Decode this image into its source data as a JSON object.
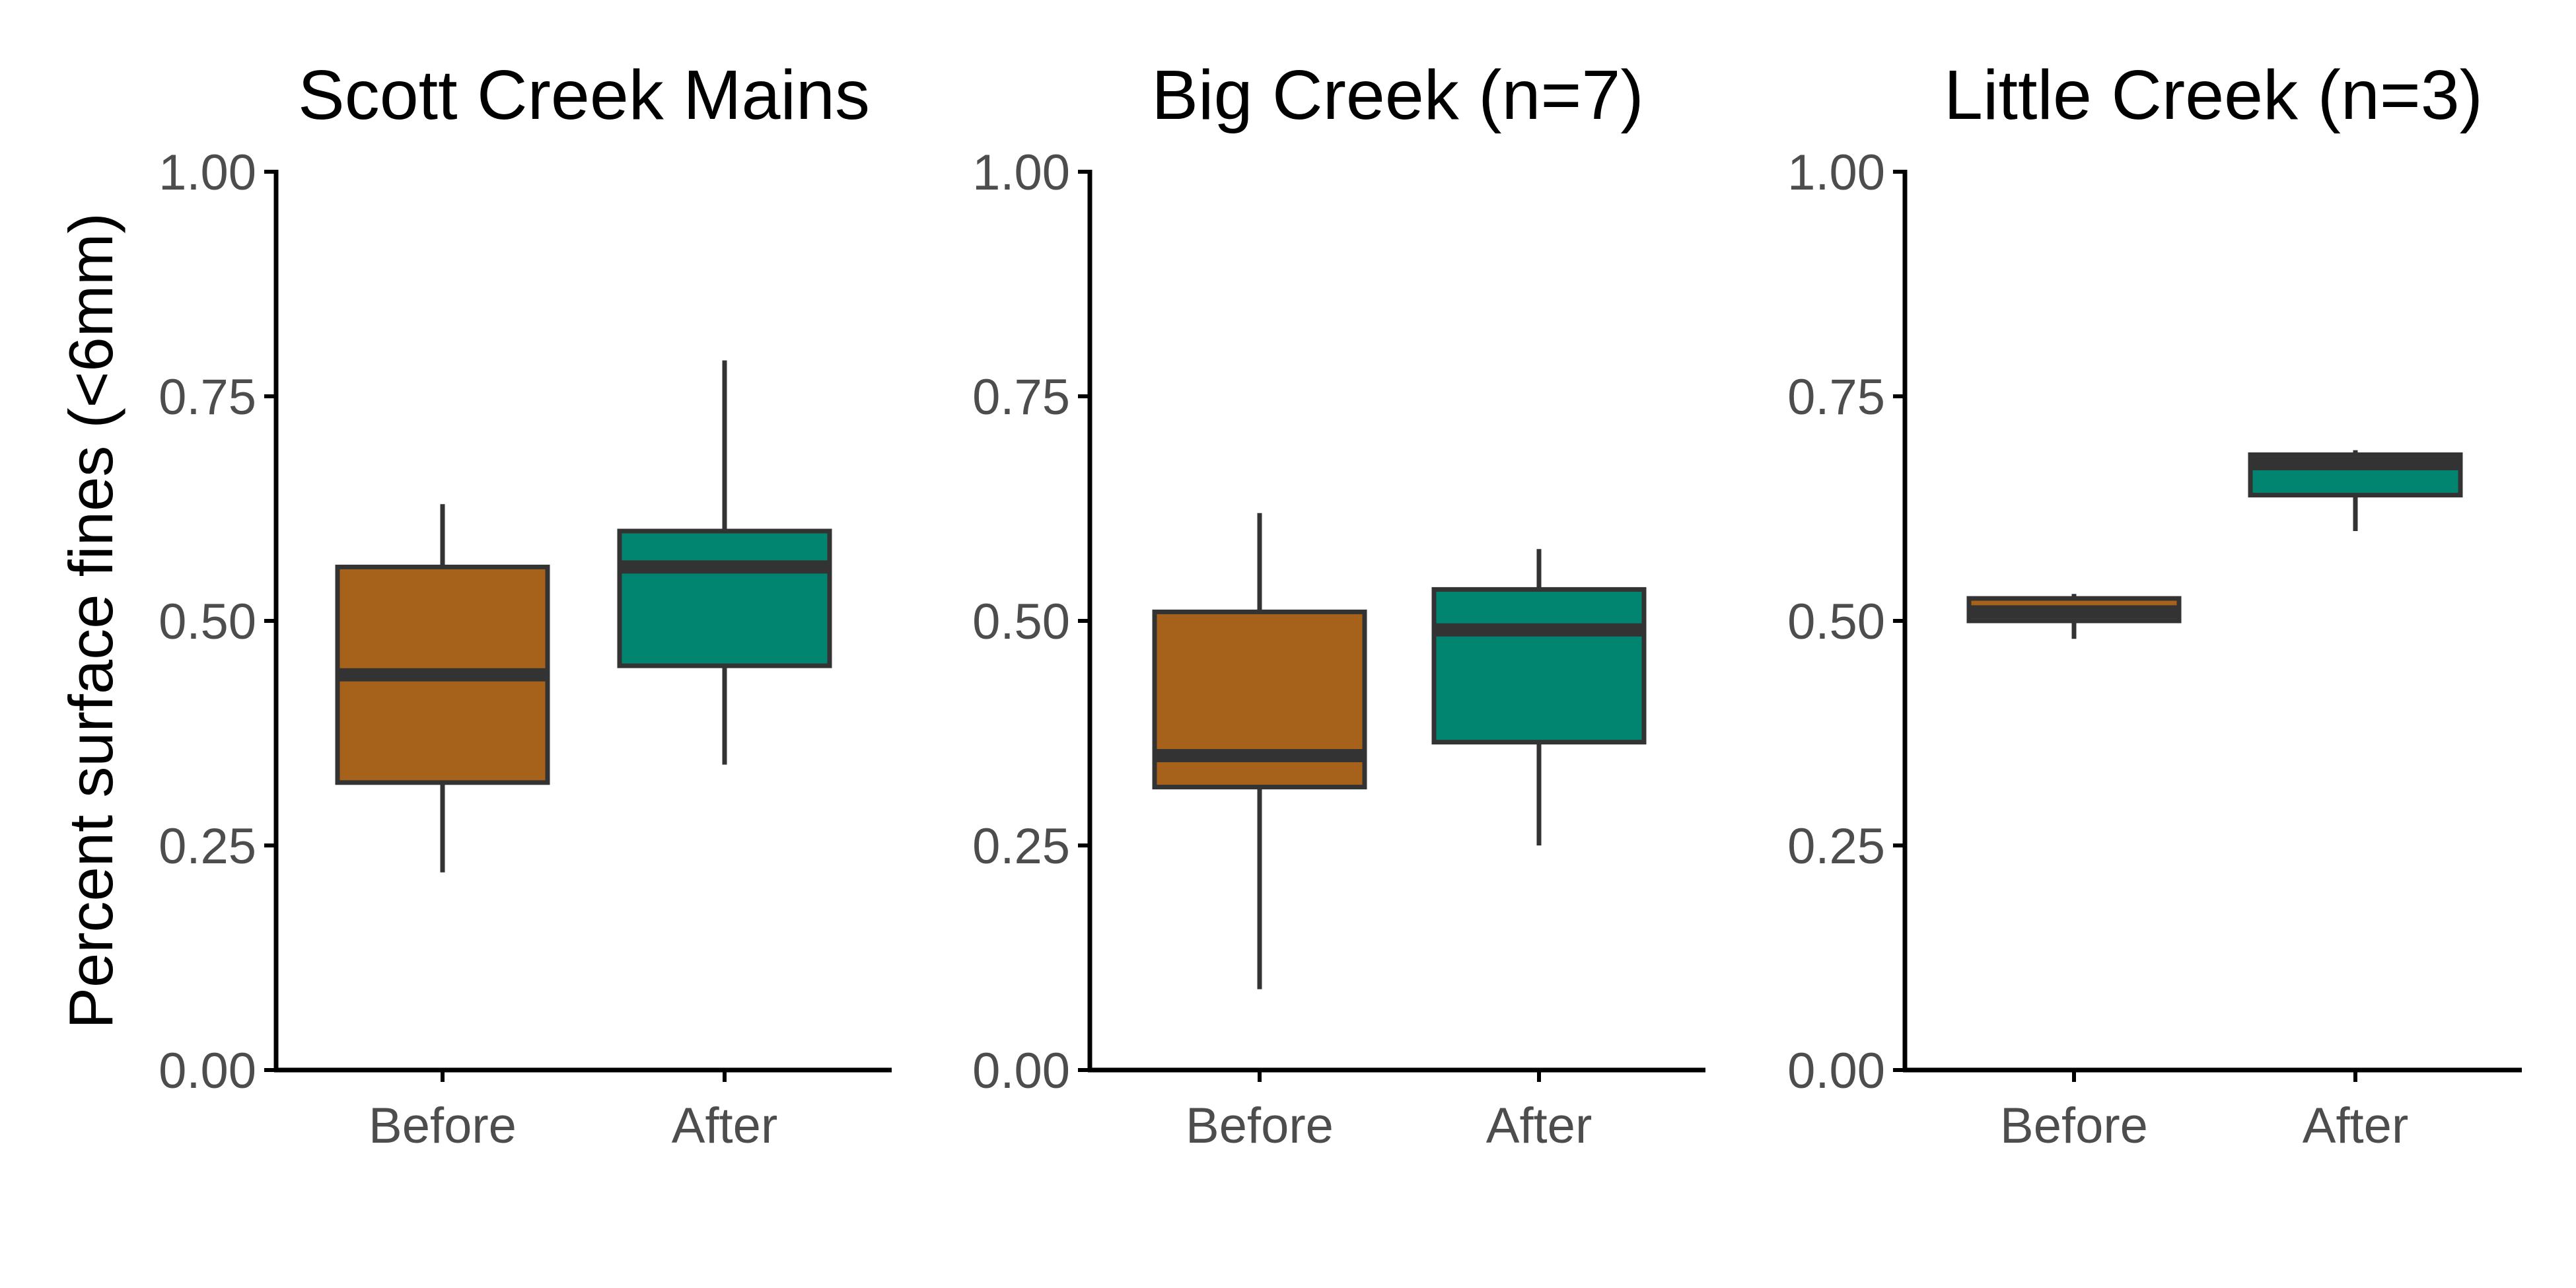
{
  "chart_data": [
    {
      "type": "box",
      "title": "Scott Creek Mains",
      "ylabel": "Percent surface fines (<6mm)",
      "ylim": [
        0,
        1
      ],
      "yticks": [
        "0.00",
        "0.25",
        "0.50",
        "0.75",
        "1.00"
      ],
      "categories": [
        "Before",
        "After"
      ],
      "boxes": [
        {
          "category": "Before",
          "min": 0.22,
          "q1": 0.32,
          "median": 0.44,
          "q3": 0.56,
          "max": 0.63,
          "color": "#a6611a"
        },
        {
          "category": "After",
          "min": 0.34,
          "q1": 0.45,
          "median": 0.56,
          "q3": 0.6,
          "max": 0.79,
          "color": "#018571"
        }
      ]
    },
    {
      "type": "box",
      "title": "Big Creek (n=7)",
      "ylim": [
        0,
        1
      ],
      "yticks": [
        "0.00",
        "0.25",
        "0.50",
        "0.75",
        "1.00"
      ],
      "categories": [
        "Before",
        "After"
      ],
      "boxes": [
        {
          "category": "Before",
          "min": 0.09,
          "q1": 0.315,
          "median": 0.35,
          "q3": 0.51,
          "max": 0.62,
          "color": "#a6611a"
        },
        {
          "category": "After",
          "min": 0.25,
          "q1": 0.365,
          "median": 0.49,
          "q3": 0.535,
          "max": 0.58,
          "color": "#018571"
        }
      ]
    },
    {
      "type": "box",
      "title": "Little Creek (n=3)",
      "ylim": [
        0,
        1
      ],
      "yticks": [
        "0.00",
        "0.25",
        "0.50",
        "0.75",
        "1.00"
      ],
      "categories": [
        "Before",
        "After"
      ],
      "boxes": [
        {
          "category": "Before",
          "min": 0.48,
          "q1": 0.5,
          "median": 0.51,
          "q3": 0.525,
          "max": 0.53,
          "color": "#a6611a"
        },
        {
          "category": "After",
          "min": 0.6,
          "q1": 0.64,
          "median": 0.675,
          "q3": 0.685,
          "max": 0.69,
          "color": "#018571"
        }
      ]
    }
  ]
}
